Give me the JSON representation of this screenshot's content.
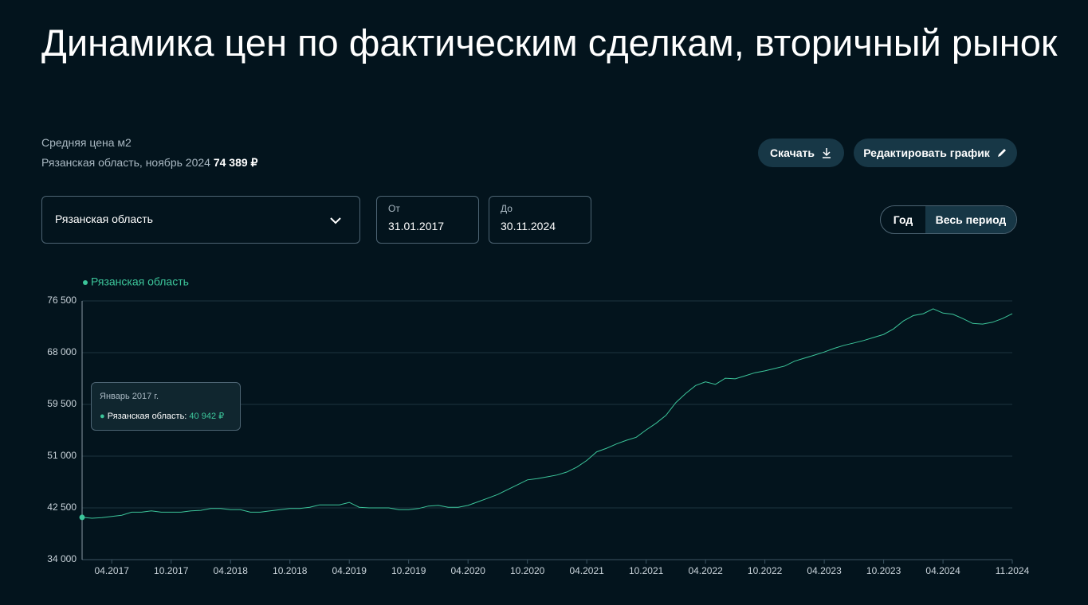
{
  "header": {
    "title": "Динамика цен по фактическим сделкам, вторичный рынок",
    "subtitle": "Средняя цена м2",
    "region_line": "Рязанская область, ноябрь 2024",
    "price": "74 389 ₽"
  },
  "buttons": {
    "download": "Скачать",
    "edit": "Редактировать график"
  },
  "filters": {
    "region": "Рязанская область",
    "from_label": "От",
    "from": "31.01.2017",
    "to_label": "До",
    "to": "30.11.2024",
    "periods": [
      "Год",
      "Весь период"
    ]
  },
  "tooltip": {
    "title": "Январь 2017 г.",
    "series": "Рязанская область:",
    "value": "40 942 ₽"
  },
  "chart_data": {
    "type": "line",
    "categories": [
      "01.2017",
      "02.2017",
      "03.2017",
      "04.2017",
      "05.2017",
      "06.2017",
      "07.2017",
      "08.2017",
      "09.2017",
      "10.2017",
      "11.2017",
      "12.2017",
      "01.2018",
      "02.2018",
      "03.2018",
      "04.2018",
      "05.2018",
      "06.2018",
      "07.2018",
      "08.2018",
      "09.2018",
      "10.2018",
      "11.2018",
      "12.2018",
      "01.2019",
      "02.2019",
      "03.2019",
      "04.2019",
      "05.2019",
      "06.2019",
      "07.2019",
      "08.2019",
      "09.2019",
      "10.2019",
      "11.2019",
      "12.2019",
      "01.2020",
      "02.2020",
      "03.2020",
      "04.2020",
      "05.2020",
      "06.2020",
      "07.2020",
      "08.2020",
      "09.2020",
      "10.2020",
      "11.2020",
      "12.2020",
      "01.2021",
      "02.2021",
      "03.2021",
      "04.2021",
      "05.2021",
      "06.2021",
      "07.2021",
      "08.2021",
      "09.2021",
      "10.2021",
      "11.2021",
      "12.2021",
      "01.2022",
      "02.2022",
      "03.2022",
      "04.2022",
      "05.2022",
      "06.2022",
      "07.2022",
      "08.2022",
      "09.2022",
      "10.2022",
      "11.2022",
      "12.2022",
      "01.2023",
      "02.2023",
      "03.2023",
      "04.2023",
      "05.2023",
      "06.2023",
      "07.2023",
      "08.2023",
      "09.2023",
      "10.2023",
      "11.2023",
      "12.2023",
      "01.2024",
      "02.2024",
      "03.2024",
      "04.2024",
      "05.2024",
      "06.2024",
      "07.2024",
      "08.2024",
      "09.2024",
      "10.2024",
      "11.2024"
    ],
    "series": [
      {
        "name": "Рязанская область",
        "color": "#3cc59a",
        "values": [
          40942,
          40800,
          40900,
          41100,
          41300,
          41800,
          41800,
          42000,
          41800,
          41800,
          41800,
          42000,
          42100,
          42400,
          42400,
          42200,
          42200,
          41800,
          41800,
          42000,
          42200,
          42400,
          42400,
          42600,
          43000,
          43000,
          43000,
          43400,
          42600,
          42500,
          42500,
          42500,
          42200,
          42200,
          42400,
          42800,
          42900,
          42600,
          42600,
          42900,
          43500,
          44100,
          44700,
          45500,
          46300,
          47100,
          47300,
          47600,
          47900,
          48400,
          49200,
          50300,
          51700,
          52300,
          53000,
          53600,
          54100,
          55300,
          56400,
          57700,
          59800,
          61300,
          62600,
          63200,
          62800,
          63800,
          63700,
          64200,
          64700,
          65000,
          65400,
          65800,
          66600,
          67100,
          67600,
          68100,
          68700,
          69200,
          69600,
          70000,
          70500,
          71000,
          71900,
          73200,
          74100,
          74400,
          75200,
          74500,
          74300,
          73600,
          72800,
          72700,
          73000,
          73600,
          74389
        ]
      }
    ],
    "xticks": [
      "04.2017",
      "10.2017",
      "04.2018",
      "10.2018",
      "04.2019",
      "10.2019",
      "04.2020",
      "10.2020",
      "04.2021",
      "10.2021",
      "04.2022",
      "10.2022",
      "04.2023",
      "10.2023",
      "04.2024",
      "11.2024"
    ],
    "ylim": [
      34000,
      76500
    ],
    "yticks": [
      {
        "value": 34000,
        "label": "34 000"
      },
      {
        "value": 42500,
        "label": "42 500"
      },
      {
        "value": 51000,
        "label": "51 000"
      },
      {
        "value": 59500,
        "label": "59 500"
      },
      {
        "value": 68000,
        "label": "68 000"
      },
      {
        "value": 76500,
        "label": "76 500"
      }
    ],
    "grid": true
  }
}
